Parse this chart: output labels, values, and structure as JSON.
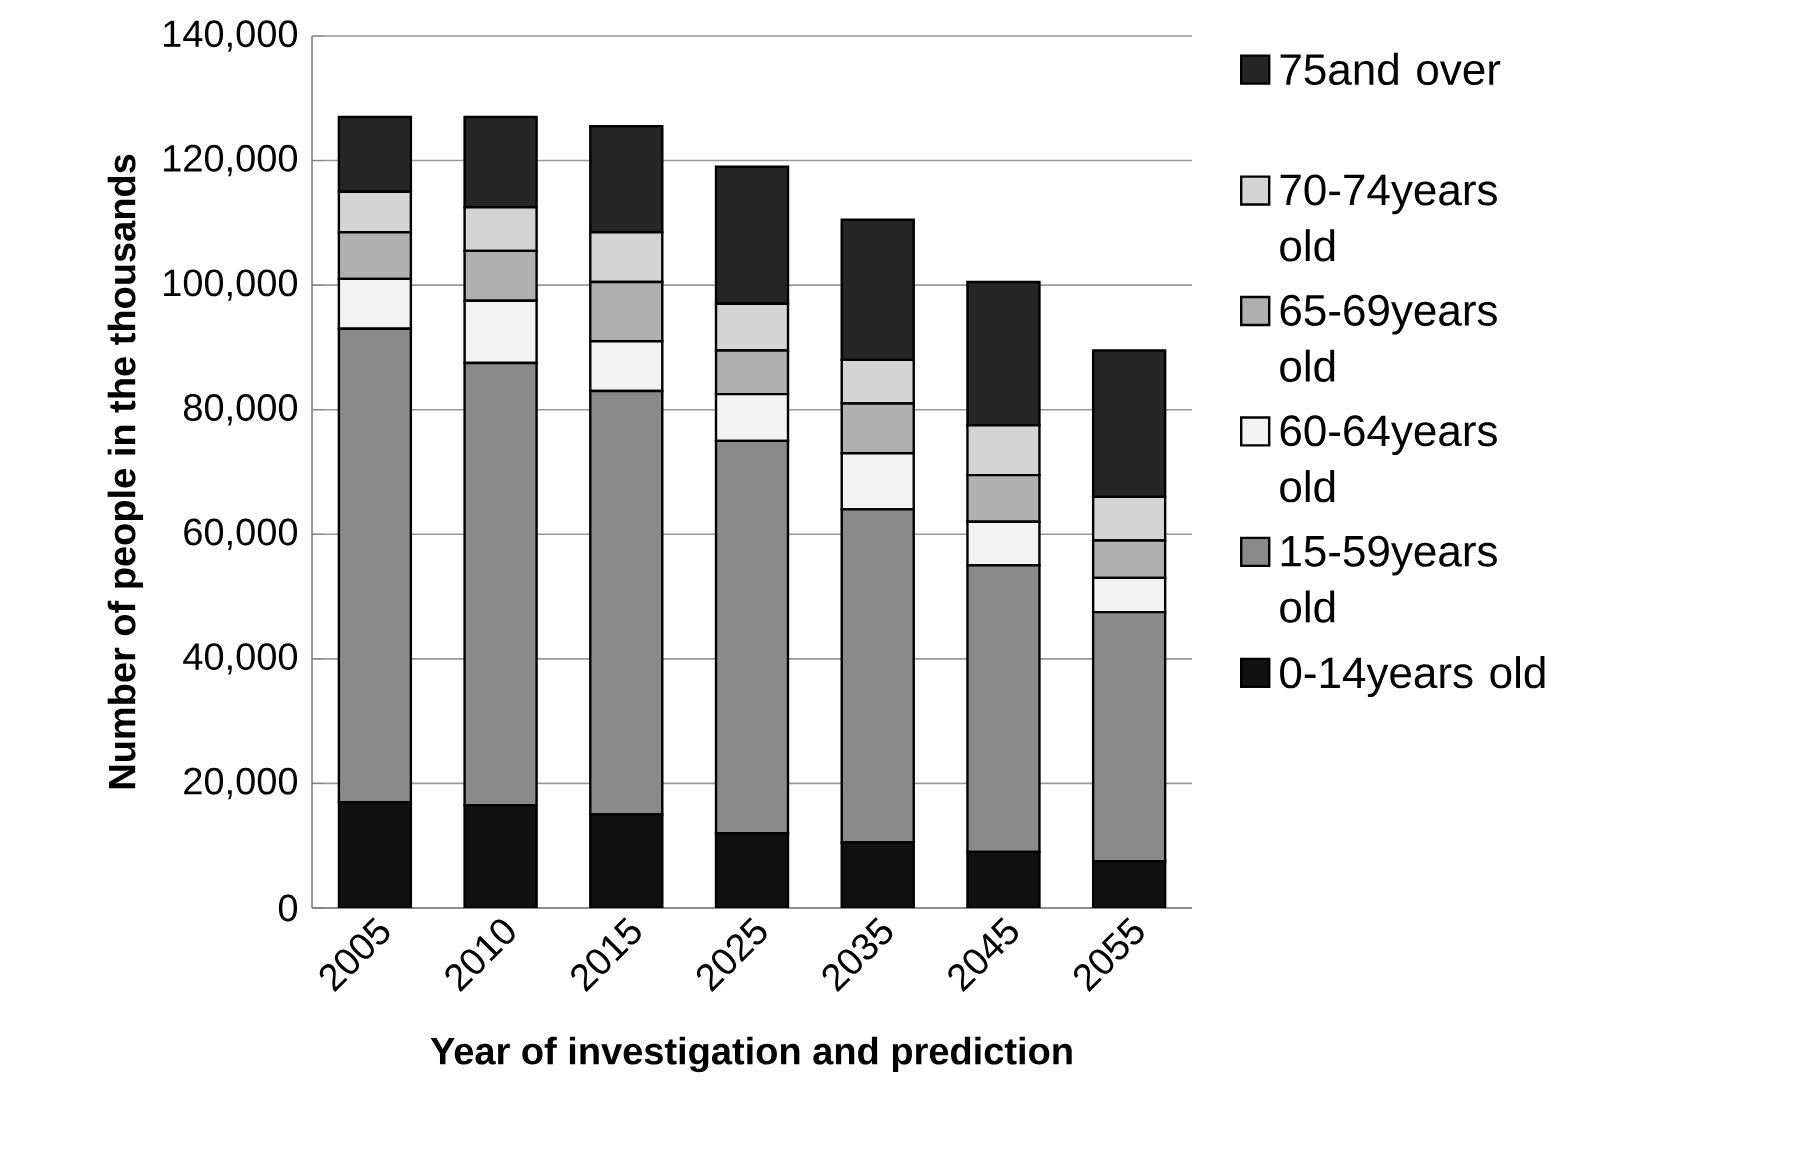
{
  "chart_data": {
    "type": "bar",
    "stacked": true,
    "xlabel": "Year of investigation and prediction",
    "ylabel": "Number of people in the thousands",
    "categories": [
      "2005",
      "2010",
      "2015",
      "2025",
      "2035",
      "2045",
      "2055"
    ],
    "series": [
      {
        "name": "0-14years old",
        "color": "#111111",
        "values": [
          17000,
          16500,
          15000,
          12000,
          10500,
          9000,
          7500
        ]
      },
      {
        "name": "15-59years old",
        "color": "#8a8a8a",
        "values": [
          76000,
          71000,
          68000,
          63000,
          53500,
          46000,
          40000
        ]
      },
      {
        "name": "60-64years old",
        "color": "#f2f2f2",
        "values": [
          8000,
          10000,
          8000,
          7500,
          9000,
          7000,
          5500
        ]
      },
      {
        "name": "65-69years old",
        "color": "#b0b0b0",
        "values": [
          7500,
          8000,
          9500,
          7000,
          8000,
          7500,
          6000
        ]
      },
      {
        "name": "70-74years old",
        "color": "#d4d4d4",
        "values": [
          6500,
          7000,
          8000,
          7500,
          7000,
          8000,
          7000
        ]
      },
      {
        "name": "75and over",
        "color": "#262626",
        "values": [
          12000,
          14500,
          17000,
          22000,
          22500,
          23000,
          23500
        ]
      }
    ],
    "ylim": [
      0,
      140000
    ],
    "yticks": [
      {
        "value": 0,
        "label": "0"
      },
      {
        "value": 20000,
        "label": "20,000"
      },
      {
        "value": 40000,
        "label": "40,000"
      },
      {
        "value": 60000,
        "label": "60,000"
      },
      {
        "value": 80000,
        "label": "80,000"
      },
      {
        "value": 100000,
        "label": "100,000"
      },
      {
        "value": 120000,
        "label": "120,000"
      },
      {
        "value": 140000,
        "label": "140,000"
      }
    ],
    "grid": "y",
    "legend": "right"
  }
}
